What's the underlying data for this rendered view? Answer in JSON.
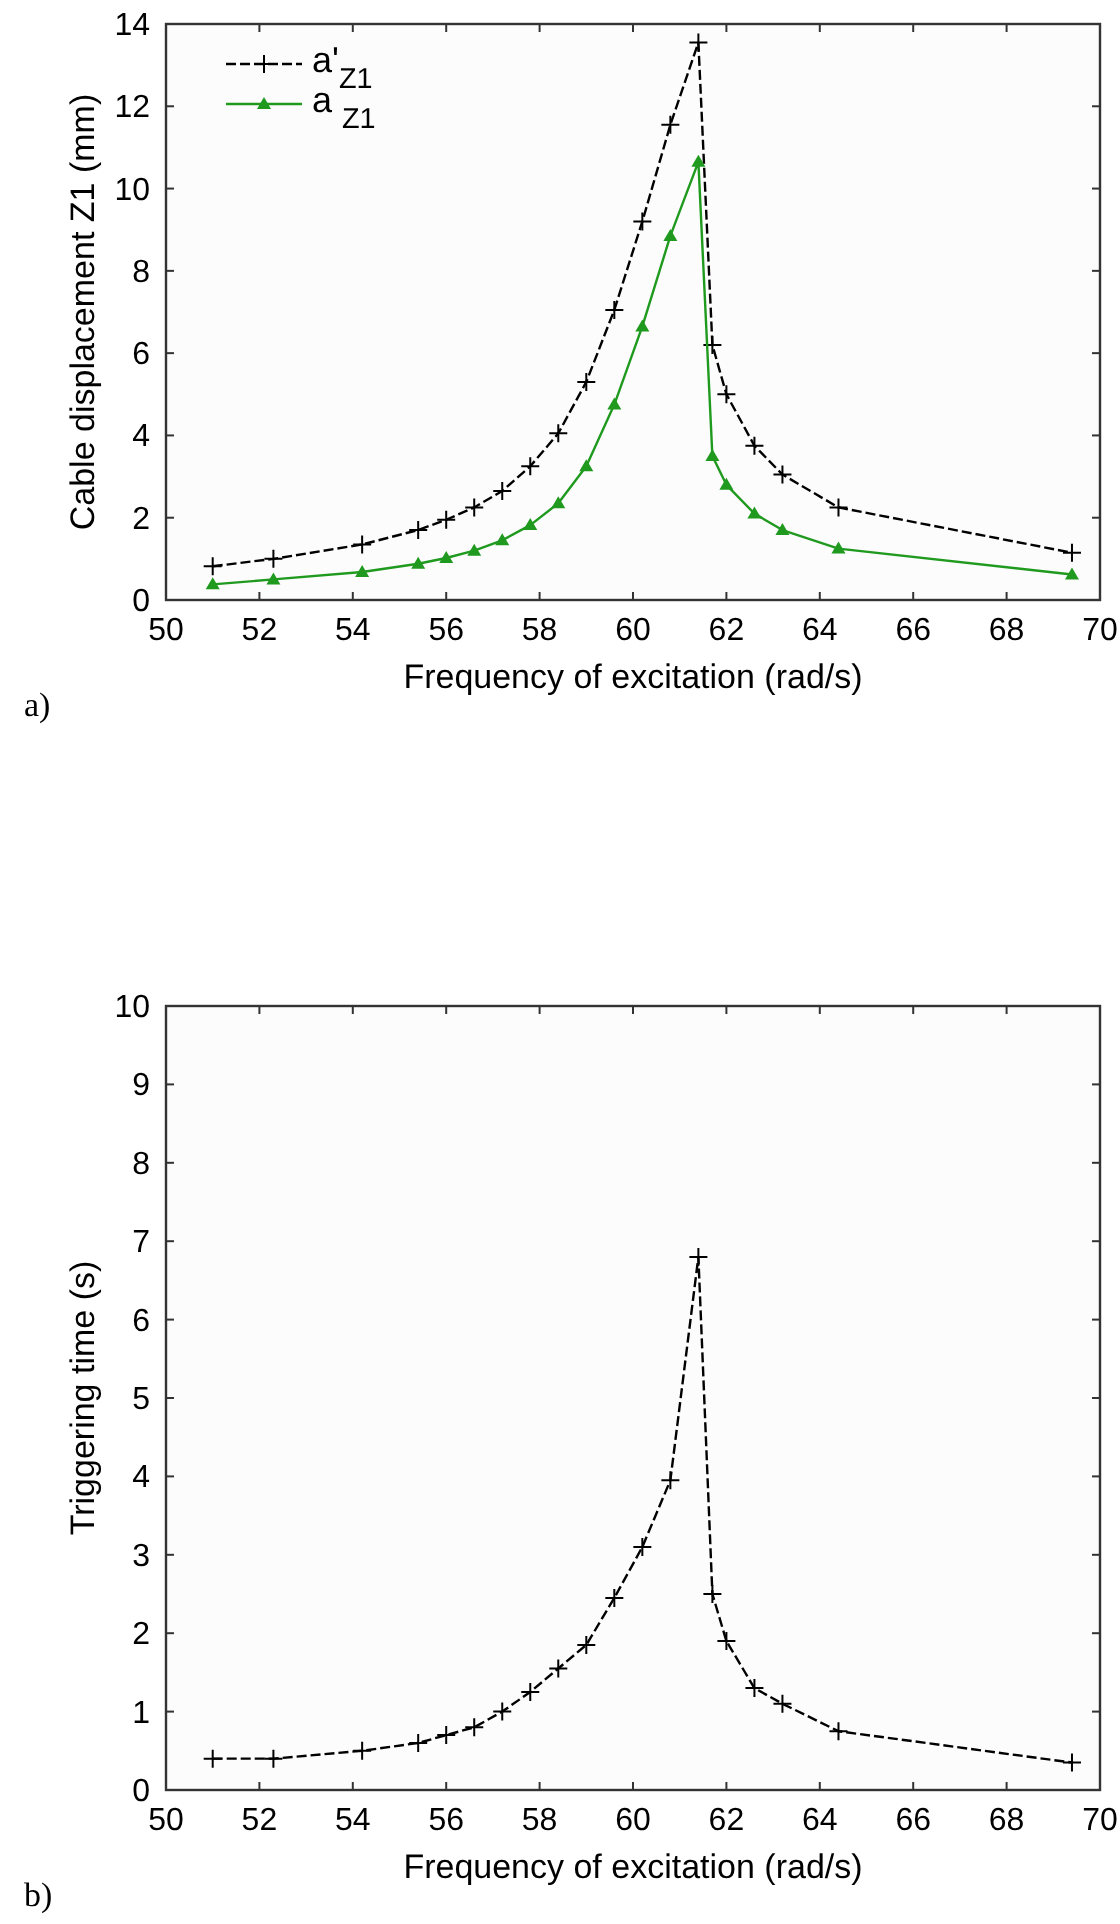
{
  "chart_data": [
    {
      "type": "line",
      "xlabel": "Frequency of excitation (rad/s)",
      "ylabel": "Cable displacement Z1 (mm)",
      "annotations": [
        "a)"
      ],
      "xlim": [
        50,
        70
      ],
      "xticks": [
        50,
        52,
        54,
        56,
        58,
        60,
        62,
        64,
        66,
        68,
        70
      ],
      "ylim": [
        0,
        14
      ],
      "yticks": [
        0,
        2,
        4,
        6,
        8,
        10,
        12,
        14
      ],
      "grid": false,
      "legend": "top left",
      "x": [
        51.0,
        52.3,
        54.2,
        55.4,
        56.0,
        56.6,
        57.2,
        57.8,
        58.4,
        59.0,
        59.6,
        60.2,
        60.8,
        61.4,
        61.7,
        62.0,
        62.6,
        63.2,
        64.4,
        69.4
      ],
      "series": [
        {
          "name": "a'$_{Z1}$",
          "color": "#000000",
          "marker": "cross",
          "line_style": "dashed",
          "values": [
            0.82,
            1.0,
            1.35,
            1.7,
            1.95,
            2.25,
            2.65,
            3.25,
            4.05,
            5.3,
            7.05,
            9.2,
            11.55,
            13.55,
            6.2,
            5.0,
            3.75,
            3.05,
            2.25,
            1.15
          ]
        },
        {
          "name": "a $_{Z1}$",
          "color": "#1f9a1f",
          "marker": "triangle",
          "line_style": "solid",
          "values": [
            0.38,
            0.5,
            0.68,
            0.88,
            1.02,
            1.2,
            1.45,
            1.82,
            2.35,
            3.25,
            4.75,
            6.65,
            8.85,
            10.65,
            3.5,
            2.8,
            2.1,
            1.7,
            1.25,
            0.62
          ]
        }
      ]
    },
    {
      "type": "line",
      "xlabel": "Frequency of excitation (rad/s)",
      "ylabel": "Triggering time (s)",
      "annotations": [
        "b)"
      ],
      "xlim": [
        50,
        70
      ],
      "xticks": [
        50,
        52,
        54,
        56,
        58,
        60,
        62,
        64,
        66,
        68,
        70
      ],
      "ylim": [
        0,
        10
      ],
      "yticks": [
        0,
        1,
        2,
        3,
        4,
        5,
        6,
        7,
        8,
        9,
        10
      ],
      "grid": false,
      "legend": false,
      "x": [
        51.0,
        52.3,
        54.2,
        55.4,
        56.0,
        56.6,
        57.2,
        57.8,
        58.4,
        59.0,
        59.6,
        60.2,
        60.8,
        61.4,
        61.7,
        62.0,
        62.6,
        63.2,
        64.4,
        69.4
      ],
      "series": [
        {
          "color": "#000000",
          "marker": "cross",
          "line_style": "dashed",
          "values": [
            0.4,
            0.4,
            0.5,
            0.6,
            0.7,
            0.8,
            1.0,
            1.25,
            1.55,
            1.85,
            2.45,
            3.1,
            3.95,
            6.8,
            2.5,
            1.9,
            1.3,
            1.1,
            0.75,
            0.35
          ]
        }
      ]
    }
  ]
}
